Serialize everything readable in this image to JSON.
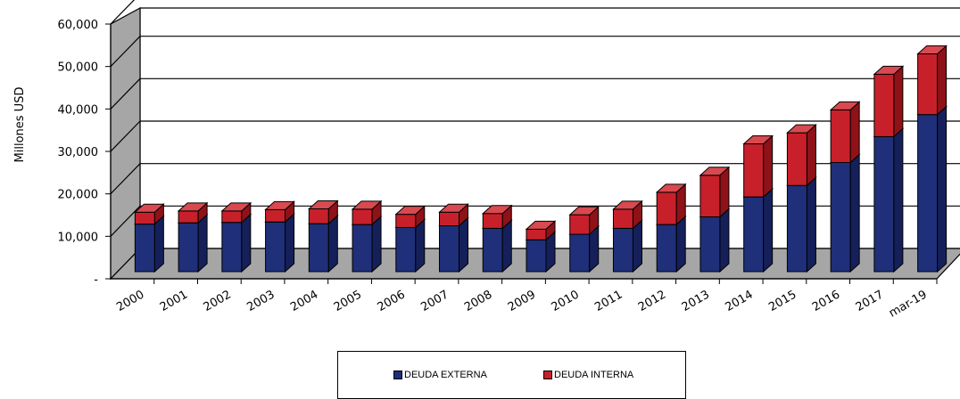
{
  "chart_data": {
    "type": "bar",
    "stacked": true,
    "style": "3d",
    "ylabel": "Millones USD",
    "ylim": [
      0,
      60000
    ],
    "yticks": [
      "-",
      "10,000",
      "20,000",
      "30,000",
      "40,000",
      "50,000",
      "60,000"
    ],
    "ytick_values": [
      0,
      10000,
      20000,
      30000,
      40000,
      50000,
      60000
    ],
    "grid": true,
    "legend_position": "bottom",
    "categories": [
      "2000",
      "2001",
      "2002",
      "2003",
      "2004",
      "2005",
      "2006",
      "2007",
      "2008",
      "2009",
      "2010",
      "2011",
      "2012",
      "2013",
      "2014",
      "2015",
      "2016",
      "2017",
      "mar-19"
    ],
    "series": [
      {
        "name": "DEUDA EXTERNA",
        "color": "#1F2F7A",
        "values": [
          11200,
          11500,
          11600,
          11700,
          11300,
          11100,
          10400,
          10800,
          10200,
          7500,
          8800,
          10200,
          11100,
          12900,
          17600,
          20300,
          25700,
          31800,
          37000
        ]
      },
      {
        "name": "DEUDA INTERNA",
        "color": "#C8202A",
        "values": [
          2800,
          2800,
          2700,
          2900,
          3500,
          3600,
          3100,
          3200,
          3500,
          2500,
          4600,
          4500,
          7600,
          9800,
          12500,
          12400,
          12400,
          14700,
          14300
        ]
      }
    ]
  }
}
